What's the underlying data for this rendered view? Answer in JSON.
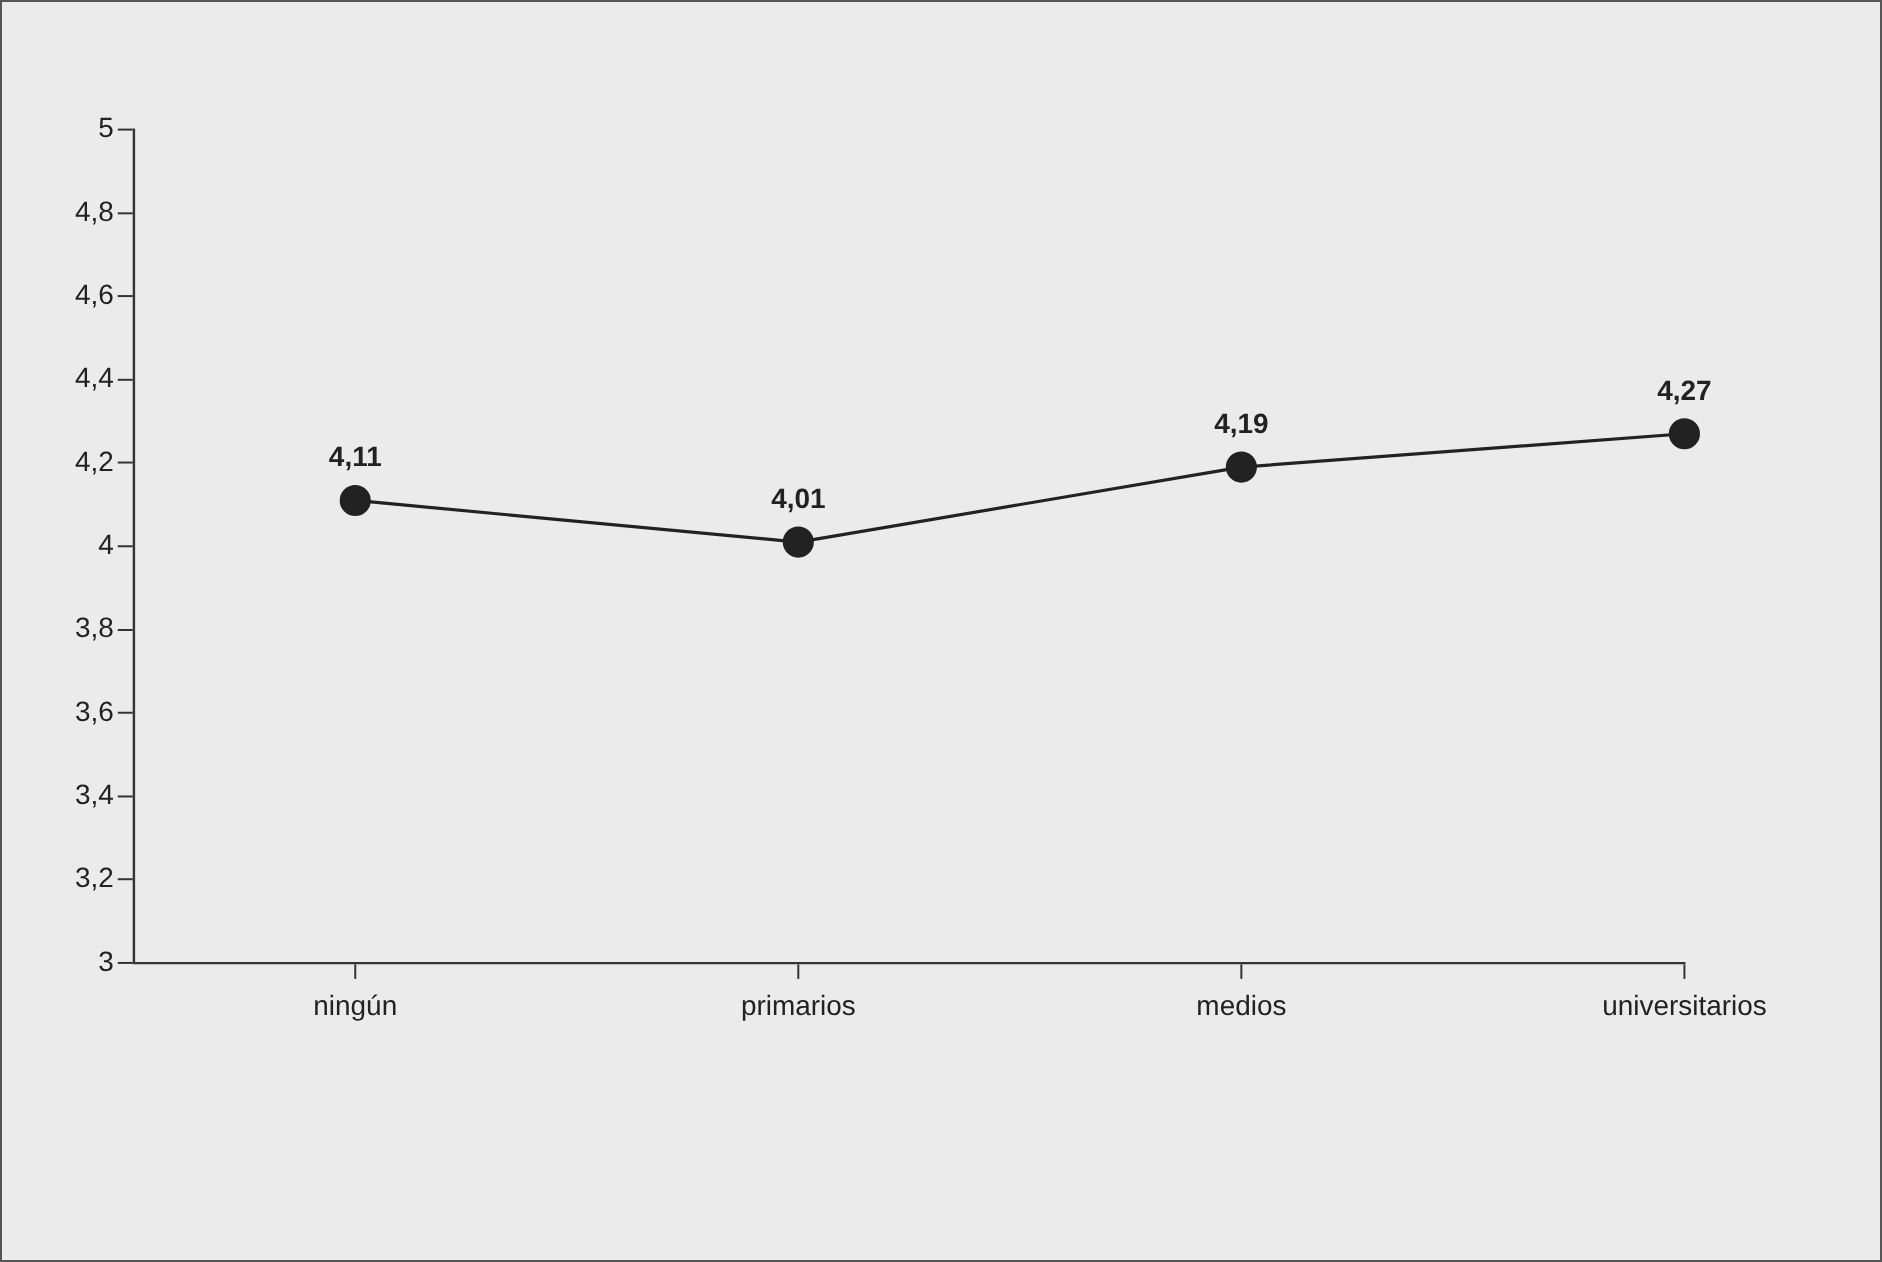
{
  "chart_data": {
    "type": "line",
    "categories": [
      "ningún",
      "primarios",
      "medios",
      "universitarios"
    ],
    "series": [
      {
        "color": "#222222",
        "values": [
          4.11,
          4.01,
          4.19,
          4.27
        ],
        "value_labels": [
          "4,11",
          "4,01",
          "4,19",
          "4,27"
        ]
      }
    ],
    "ylim": [
      3,
      5
    ],
    "yticks": [
      3,
      {
        "value": 3.2,
        "label": "3,2"
      },
      {
        "value": 3.4,
        "label": "3,4"
      },
      {
        "value": 3.6,
        "label": "3,6"
      },
      {
        "value": 3.8,
        "label": "3,8"
      },
      4,
      {
        "value": 4.2,
        "label": "4,2"
      },
      {
        "value": 4.4,
        "label": "4,4"
      },
      {
        "value": 4.6,
        "label": "4,6"
      },
      {
        "value": 4.8,
        "label": "4,8"
      },
      5
    ],
    "marker": "circle",
    "line_style": "solid",
    "grid": false,
    "legend": false
  }
}
